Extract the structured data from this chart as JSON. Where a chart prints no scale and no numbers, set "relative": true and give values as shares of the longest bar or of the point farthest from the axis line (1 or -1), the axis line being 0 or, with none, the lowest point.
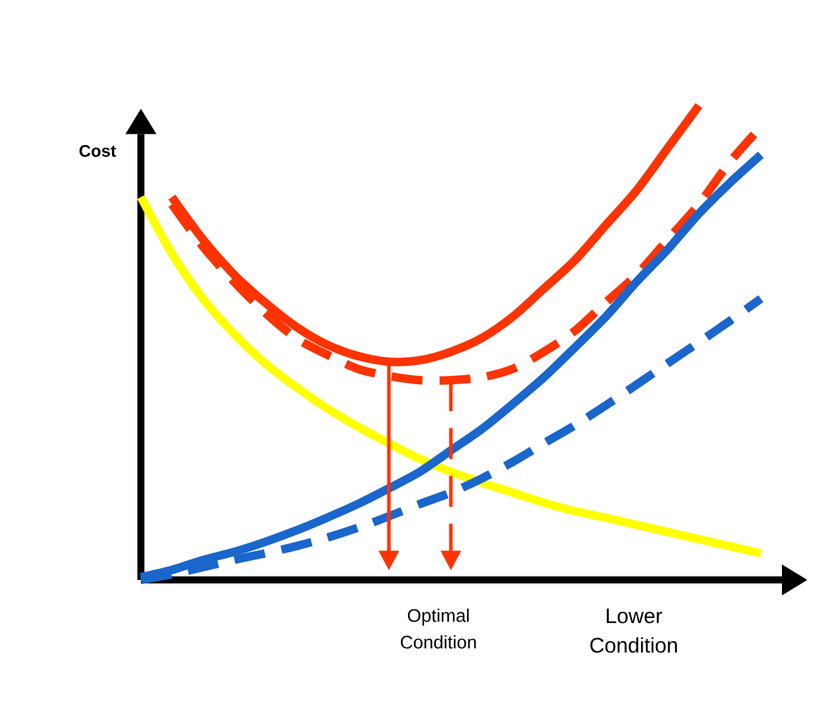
{
  "chart_data": {
    "type": "line",
    "relative": true,
    "ylabel": "Cost",
    "categories": [
      null,
      null,
      null,
      null,
      null,
      null,
      null,
      null,
      null,
      null,
      null,
      null,
      null,
      null,
      null,
      null,
      null,
      null,
      null,
      null,
      null
    ],
    "series": [
      {
        "color": "#ff3300",
        "line_style": "solid",
        "values": [
          null,
          0.807,
          0.718,
          0.644,
          0.585,
          0.534,
          0.496,
          0.472,
          0.46,
          0.463,
          0.481,
          0.51,
          0.555,
          0.614,
          0.674,
          0.748,
          0.822,
          0.911,
          1.0,
          null,
          null
        ]
      },
      {
        "color": "#ff3300",
        "line_style": "dashed",
        "values": [
          null,
          0.792,
          0.703,
          0.629,
          0.564,
          0.51,
          0.475,
          0.445,
          0.43,
          0.421,
          0.421,
          0.427,
          0.445,
          0.481,
          0.525,
          0.585,
          0.644,
          0.718,
          0.792,
          0.881,
          0.955
        ]
      },
      {
        "color": "#ffff00",
        "line_style": "solid",
        "values": [
          0.807,
          0.688,
          0.593,
          0.519,
          0.457,
          0.407,
          0.362,
          0.323,
          0.288,
          0.255,
          0.228,
          0.205,
          0.184,
          0.163,
          0.145,
          0.131,
          0.116,
          0.101,
          0.086,
          0.071,
          0.056
        ]
      },
      {
        "color": "#1a66cc",
        "line_style": "solid",
        "values": [
          0.006,
          0.021,
          0.042,
          0.059,
          0.08,
          0.104,
          0.131,
          0.16,
          0.193,
          0.228,
          0.273,
          0.318,
          0.371,
          0.427,
          0.49,
          0.555,
          0.629,
          0.697,
          0.772,
          0.837,
          0.896
        ]
      },
      {
        "color": "#1a66cc",
        "line_style": "dashed",
        "values": [
          0,
          0.012,
          0.027,
          0.042,
          0.056,
          0.071,
          0.089,
          0.11,
          0.134,
          0.16,
          0.184,
          0.214,
          0.249,
          0.288,
          0.326,
          0.368,
          0.412,
          0.457,
          0.501,
          0.546,
          0.593
        ]
      }
    ],
    "annotations": [
      "Optimal Condition",
      "Lower Condition"
    ]
  }
}
